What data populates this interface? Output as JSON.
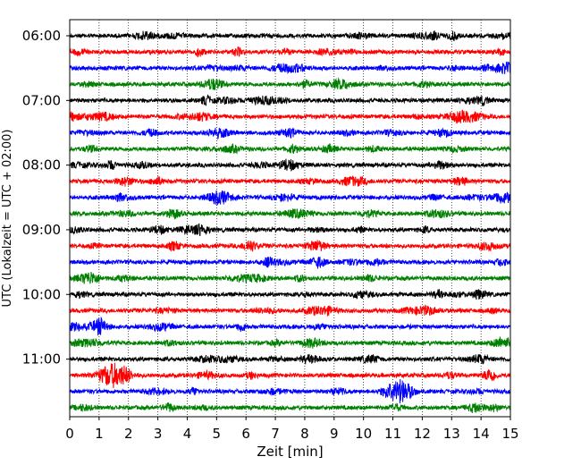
{
  "chart_data": {
    "type": "line",
    "title": "",
    "xlabel": "Zeit  [min]",
    "ylabel": "UTC (Lokalzeit = UTC + 02:00)",
    "xlim": [
      0,
      15
    ],
    "x_ticks": [
      "0",
      "1",
      "2",
      "3",
      "4",
      "5",
      "6",
      "7",
      "8",
      "9",
      "10",
      "11",
      "12",
      "13",
      "14",
      "15"
    ],
    "y_ticks": [
      "06:00",
      "07:00",
      "08:00",
      "09:00",
      "10:00",
      "11:00"
    ],
    "grid": "vertical dotted lines at each minute",
    "trace_interval_min": 15,
    "trace_start": "06:00",
    "trace_count": 24,
    "trace_colors": [
      "#000000",
      "#ff0000",
      "#0000ff",
      "#008000"
    ],
    "notable_events": [
      {
        "trace": "11:15",
        "x": 1.4,
        "amplitude": "high"
      },
      {
        "trace": "11:30",
        "x": 11.2,
        "amplitude": "high"
      },
      {
        "trace": "08:30",
        "x": 14.8,
        "amplitude": "medium"
      },
      {
        "trace": "07:15",
        "x": 13.3,
        "amplitude": "medium"
      },
      {
        "trace": "06:30",
        "x": 14.9,
        "amplitude": "medium"
      }
    ]
  }
}
